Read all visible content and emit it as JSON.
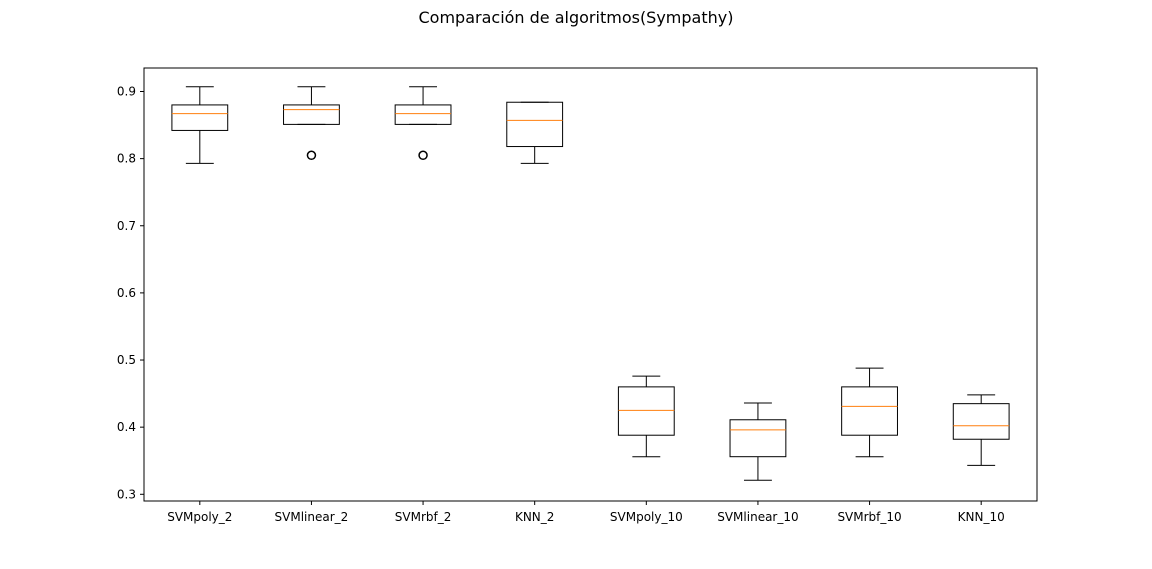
{
  "chart_data": {
    "type": "box",
    "title": "Comparación de algoritmos(Sympathy)",
    "xlabel": "",
    "ylabel": "",
    "ylim": [
      0.29,
      0.935
    ],
    "yticks": [
      "0.3",
      "0.4",
      "0.5",
      "0.6",
      "0.7",
      "0.8",
      "0.9"
    ],
    "ytick_values": [
      0.3,
      0.4,
      0.5,
      0.6,
      0.7,
      0.8,
      0.9
    ],
    "grid": false,
    "box_color": "#000000",
    "median_color": "#ff7f0e",
    "categories": [
      "SVMpoly_2",
      "SVMlinear_2",
      "SVMrbf_2",
      "KNN_2",
      "SVMpoly_10",
      "SVMlinear_10",
      "SVMrbf_10",
      "KNN_10"
    ],
    "boxes": [
      {
        "whisker_low": 0.793,
        "q1": 0.842,
        "median": 0.867,
        "q3": 0.88,
        "whisker_high": 0.907,
        "outliers": []
      },
      {
        "whisker_low": 0.851,
        "q1": 0.851,
        "median": 0.873,
        "q3": 0.88,
        "whisker_high": 0.907,
        "outliers": [
          0.805
        ]
      },
      {
        "whisker_low": 0.851,
        "q1": 0.851,
        "median": 0.867,
        "q3": 0.88,
        "whisker_high": 0.907,
        "outliers": [
          0.805
        ]
      },
      {
        "whisker_low": 0.793,
        "q1": 0.818,
        "median": 0.857,
        "q3": 0.884,
        "whisker_high": 0.884,
        "outliers": []
      },
      {
        "whisker_low": 0.356,
        "q1": 0.388,
        "median": 0.425,
        "q3": 0.46,
        "whisker_high": 0.476,
        "outliers": []
      },
      {
        "whisker_low": 0.321,
        "q1": 0.356,
        "median": 0.396,
        "q3": 0.411,
        "whisker_high": 0.436,
        "outliers": []
      },
      {
        "whisker_low": 0.356,
        "q1": 0.388,
        "median": 0.431,
        "q3": 0.46,
        "whisker_high": 0.488,
        "outliers": []
      },
      {
        "whisker_low": 0.343,
        "q1": 0.382,
        "median": 0.402,
        "q3": 0.435,
        "whisker_high": 0.448,
        "outliers": []
      }
    ]
  }
}
